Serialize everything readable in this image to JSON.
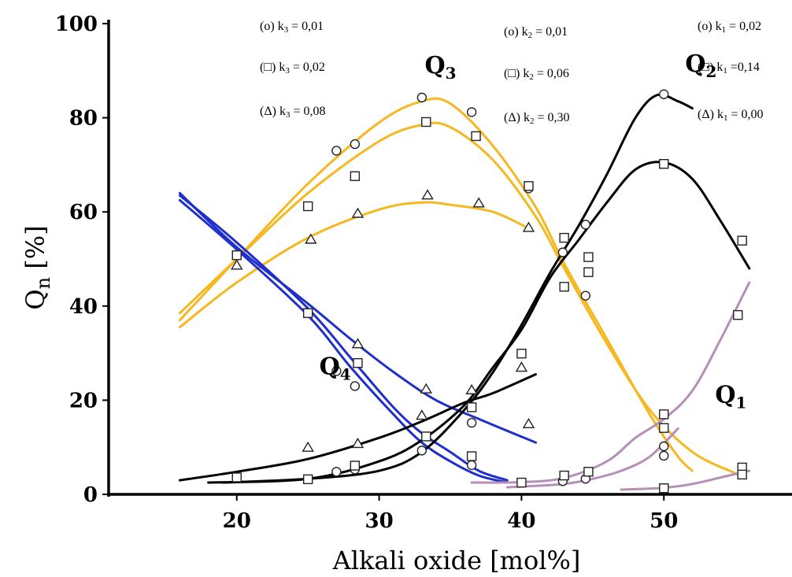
{
  "chart_data": {
    "type": "scatter",
    "xlabel": "Alkali oxide [mol%]",
    "ylabel_main": "Q",
    "ylabel_sub": "n",
    "ylabel_unit": " [%]",
    "xlim": [
      11,
      59
    ],
    "ylim": [
      0,
      100
    ],
    "xticks": [
      20,
      30,
      40,
      50
    ],
    "yticks": [
      0,
      20,
      40,
      60,
      80,
      100
    ],
    "grid": false,
    "colors": {
      "Q4": "#1f2fcc",
      "Q3": "#f5b820",
      "Q2": "#000000",
      "Q1": "#b58fb8"
    },
    "series_labels": [
      {
        "id": "Q4",
        "main": "Q",
        "sub": "4",
        "x": 25.8,
        "y": 25.5
      },
      {
        "id": "Q3",
        "main": "Q",
        "sub": "3",
        "x": 33.2,
        "y": 89.5
      },
      {
        "id": "Q2",
        "main": "Q",
        "sub": "2",
        "x": 51.5,
        "y": 89.8
      },
      {
        "id": "Q1",
        "main": "Q",
        "sub": "1",
        "x": 53.6,
        "y": 19.5
      }
    ],
    "rate_constants": [
      {
        "text": "(o) k",
        "sub": "3",
        "val": " = 0,01"
      },
      {
        "text": "(□) k",
        "sub": "3",
        "val": " = 0,02"
      },
      {
        "text": "(Δ) k",
        "sub": "3",
        "val": " = 0,08"
      },
      {
        "text": "(o) k",
        "sub": "2",
        "val": " = 0,01"
      },
      {
        "text": "(□) k",
        "sub": "2",
        "val": " = 0,06"
      },
      {
        "text": "(Δ) k",
        "sub": "2",
        "val": " = 0,30"
      },
      {
        "text": "(o) k",
        "sub": "1",
        "val": " = 0,02"
      },
      {
        "text": "(□) k",
        "sub": "1",
        "val": " =0,14"
      },
      {
        "text": "(Δ) k",
        "sub": "1",
        "val": " = 0,00"
      }
    ],
    "curves": [
      {
        "species": "Q3",
        "set": "circle",
        "points": [
          [
            16,
            37
          ],
          [
            20,
            50
          ],
          [
            25,
            66
          ],
          [
            30,
            79
          ],
          [
            33,
            83.5
          ],
          [
            35,
            83
          ],
          [
            38,
            74
          ],
          [
            41,
            61
          ],
          [
            43,
            49
          ],
          [
            46,
            33
          ],
          [
            49,
            17
          ],
          [
            51,
            8
          ],
          [
            52,
            5
          ]
        ]
      },
      {
        "species": "Q3",
        "set": "square",
        "points": [
          [
            16,
            38.5
          ],
          [
            20,
            50
          ],
          [
            25,
            64
          ],
          [
            30,
            75
          ],
          [
            33,
            78.5
          ],
          [
            35,
            78
          ],
          [
            38,
            71
          ],
          [
            41,
            59
          ],
          [
            43,
            48
          ],
          [
            46,
            32
          ],
          [
            49,
            18
          ],
          [
            52,
            9
          ],
          [
            55,
            4.5
          ]
        ]
      },
      {
        "species": "Q3",
        "set": "triangle",
        "points": [
          [
            16,
            35.5
          ],
          [
            20,
            45
          ],
          [
            25,
            54.5
          ],
          [
            30,
            60.5
          ],
          [
            33,
            62
          ],
          [
            35,
            61.5
          ],
          [
            38,
            60
          ],
          [
            40.5,
            56.5
          ]
        ]
      },
      {
        "species": "Q4",
        "set": "circle",
        "points": [
          [
            16,
            62.5
          ],
          [
            20,
            52
          ],
          [
            25,
            38
          ],
          [
            28,
            27
          ],
          [
            31,
            17
          ],
          [
            33,
            11
          ],
          [
            35,
            7
          ],
          [
            37,
            4
          ],
          [
            39,
            2.5
          ]
        ]
      },
      {
        "species": "Q4",
        "set": "square",
        "points": [
          [
            16,
            63.5
          ],
          [
            20,
            53.5
          ],
          [
            25,
            39.5
          ],
          [
            28,
            29
          ],
          [
            31,
            18.5
          ],
          [
            33,
            13
          ],
          [
            35,
            9
          ],
          [
            37,
            5
          ],
          [
            39,
            3
          ]
        ]
      },
      {
        "species": "Q4",
        "set": "triangle",
        "points": [
          [
            16,
            64
          ],
          [
            20,
            52.5
          ],
          [
            25,
            40.5
          ],
          [
            28,
            33
          ],
          [
            31,
            26
          ],
          [
            34,
            20
          ],
          [
            37,
            16
          ],
          [
            41,
            11
          ]
        ]
      },
      {
        "species": "Q2",
        "set": "circle",
        "points": [
          [
            19,
            2.5
          ],
          [
            25,
            3.3
          ],
          [
            30,
            5
          ],
          [
            33,
            9
          ],
          [
            36,
            18
          ],
          [
            38,
            26
          ],
          [
            40,
            36
          ],
          [
            42,
            47
          ],
          [
            44,
            57
          ],
          [
            46,
            68
          ],
          [
            48,
            80
          ],
          [
            49.5,
            84.8
          ],
          [
            51,
            83.5
          ],
          [
            52,
            82
          ]
        ]
      },
      {
        "species": "Q2",
        "set": "square",
        "points": [
          [
            18,
            2.5
          ],
          [
            25,
            3.3
          ],
          [
            30,
            7
          ],
          [
            33,
            11.5
          ],
          [
            36,
            19
          ],
          [
            38,
            27
          ],
          [
            40,
            35
          ],
          [
            42,
            46
          ],
          [
            44,
            54
          ],
          [
            46,
            62
          ],
          [
            48,
            69
          ],
          [
            50,
            70.5
          ],
          [
            52,
            67
          ],
          [
            54,
            58
          ],
          [
            56,
            48
          ]
        ]
      },
      {
        "species": "Q2",
        "set": "triangle",
        "points": [
          [
            16,
            3
          ],
          [
            20,
            4.8
          ],
          [
            25,
            7.5
          ],
          [
            30,
            12
          ],
          [
            33,
            15.5
          ],
          [
            36,
            19.5
          ],
          [
            38,
            21.5
          ],
          [
            41,
            25.5
          ]
        ]
      },
      {
        "species": "Q1",
        "set": "circle",
        "points": [
          [
            39,
            1.5
          ],
          [
            41,
            1.8
          ],
          [
            43,
            2.2
          ],
          [
            45,
            3.3
          ],
          [
            47,
            5
          ],
          [
            49,
            8
          ],
          [
            51,
            14
          ]
        ]
      },
      {
        "species": "Q1",
        "set": "square",
        "points": [
          [
            36.5,
            2.5
          ],
          [
            40,
            2.6
          ],
          [
            43,
            3.5
          ],
          [
            46,
            7
          ],
          [
            48,
            12
          ],
          [
            50,
            16
          ],
          [
            52,
            22
          ],
          [
            54,
            33
          ],
          [
            56,
            45
          ]
        ]
      },
      {
        "species": "Q1",
        "set": "triangle",
        "points": [
          [
            47,
            1
          ],
          [
            50,
            1.4
          ],
          [
            52,
            2.2
          ],
          [
            54,
            3.6
          ],
          [
            56,
            5
          ]
        ]
      }
    ],
    "markers": [
      {
        "shape": "circle",
        "x": 27,
        "y": 73
      },
      {
        "shape": "circle",
        "x": 28.3,
        "y": 74.4
      },
      {
        "shape": "circle",
        "x": 33,
        "y": 84.3
      },
      {
        "shape": "circle",
        "x": 36.5,
        "y": 81.2
      },
      {
        "shape": "circle",
        "x": 40.5,
        "y": 65
      },
      {
        "shape": "circle",
        "x": 42.9,
        "y": 51.4
      },
      {
        "shape": "circle",
        "x": 44.5,
        "y": 57.3
      },
      {
        "shape": "circle",
        "x": 44.5,
        "y": 42.2
      },
      {
        "shape": "circle",
        "x": 50,
        "y": 85
      },
      {
        "shape": "circle",
        "x": 50,
        "y": 10.2
      },
      {
        "shape": "circle",
        "x": 50,
        "y": 8.2
      },
      {
        "shape": "circle",
        "x": 27,
        "y": 26.2
      },
      {
        "shape": "circle",
        "x": 28.3,
        "y": 23
      },
      {
        "shape": "circle",
        "x": 33,
        "y": 9.3
      },
      {
        "shape": "circle",
        "x": 36.5,
        "y": 15.2
      },
      {
        "shape": "circle",
        "x": 36.5,
        "y": 6.2
      },
      {
        "shape": "circle",
        "x": 27,
        "y": 4.8
      },
      {
        "shape": "circle",
        "x": 28.3,
        "y": 5.3
      },
      {
        "shape": "circle",
        "x": 42.9,
        "y": 2.8
      },
      {
        "shape": "circle",
        "x": 44.5,
        "y": 3.3
      },
      {
        "shape": "square",
        "x": 20,
        "y": 50.8
      },
      {
        "shape": "square",
        "x": 25,
        "y": 61.2
      },
      {
        "shape": "square",
        "x": 28.3,
        "y": 67.6
      },
      {
        "shape": "square",
        "x": 33.3,
        "y": 79.1
      },
      {
        "shape": "square",
        "x": 36.8,
        "y": 76.1
      },
      {
        "shape": "square",
        "x": 40.5,
        "y": 65.5
      },
      {
        "shape": "square",
        "x": 43,
        "y": 54.5
      },
      {
        "shape": "square",
        "x": 43,
        "y": 44.1
      },
      {
        "shape": "square",
        "x": 44.7,
        "y": 50.4
      },
      {
        "shape": "square",
        "x": 44.7,
        "y": 47.2
      },
      {
        "shape": "square",
        "x": 50,
        "y": 70.2
      },
      {
        "shape": "square",
        "x": 55.5,
        "y": 53.9
      },
      {
        "shape": "square",
        "x": 55.2,
        "y": 38.1
      },
      {
        "shape": "square",
        "x": 50,
        "y": 17
      },
      {
        "shape": "square",
        "x": 50,
        "y": 14.1
      },
      {
        "shape": "square",
        "x": 55.5,
        "y": 5.7
      },
      {
        "shape": "square",
        "x": 55.5,
        "y": 4.2
      },
      {
        "shape": "square",
        "x": 50,
        "y": 1.3
      },
      {
        "shape": "square",
        "x": 40,
        "y": 2.5
      },
      {
        "shape": "square",
        "x": 43,
        "y": 4
      },
      {
        "shape": "square",
        "x": 44.7,
        "y": 4.8
      },
      {
        "shape": "square",
        "x": 25,
        "y": 38.5
      },
      {
        "shape": "square",
        "x": 28.5,
        "y": 27.9
      },
      {
        "shape": "square",
        "x": 33.3,
        "y": 12.3
      },
      {
        "shape": "square",
        "x": 36.5,
        "y": 18.5
      },
      {
        "shape": "square",
        "x": 36.5,
        "y": 8.1
      },
      {
        "shape": "square",
        "x": 40,
        "y": 29.9
      },
      {
        "shape": "square",
        "x": 20,
        "y": 3.6
      },
      {
        "shape": "square",
        "x": 25,
        "y": 3.2
      },
      {
        "shape": "square",
        "x": 28.3,
        "y": 6.1
      },
      {
        "shape": "triangle",
        "x": 20,
        "y": 48.7
      },
      {
        "shape": "triangle",
        "x": 25.2,
        "y": 54.2
      },
      {
        "shape": "triangle",
        "x": 28.5,
        "y": 59.7
      },
      {
        "shape": "triangle",
        "x": 33.4,
        "y": 63.6
      },
      {
        "shape": "triangle",
        "x": 37,
        "y": 61.9
      },
      {
        "shape": "triangle",
        "x": 40.5,
        "y": 56.7
      },
      {
        "shape": "triangle",
        "x": 28.5,
        "y": 32
      },
      {
        "shape": "triangle",
        "x": 33.3,
        "y": 22.4
      },
      {
        "shape": "triangle",
        "x": 36.5,
        "y": 22.2
      },
      {
        "shape": "triangle",
        "x": 40,
        "y": 27
      },
      {
        "shape": "triangle",
        "x": 40.5,
        "y": 15
      },
      {
        "shape": "triangle",
        "x": 25,
        "y": 10
      },
      {
        "shape": "triangle",
        "x": 28.5,
        "y": 10.8
      },
      {
        "shape": "triangle",
        "x": 33,
        "y": 16.8
      }
    ]
  }
}
